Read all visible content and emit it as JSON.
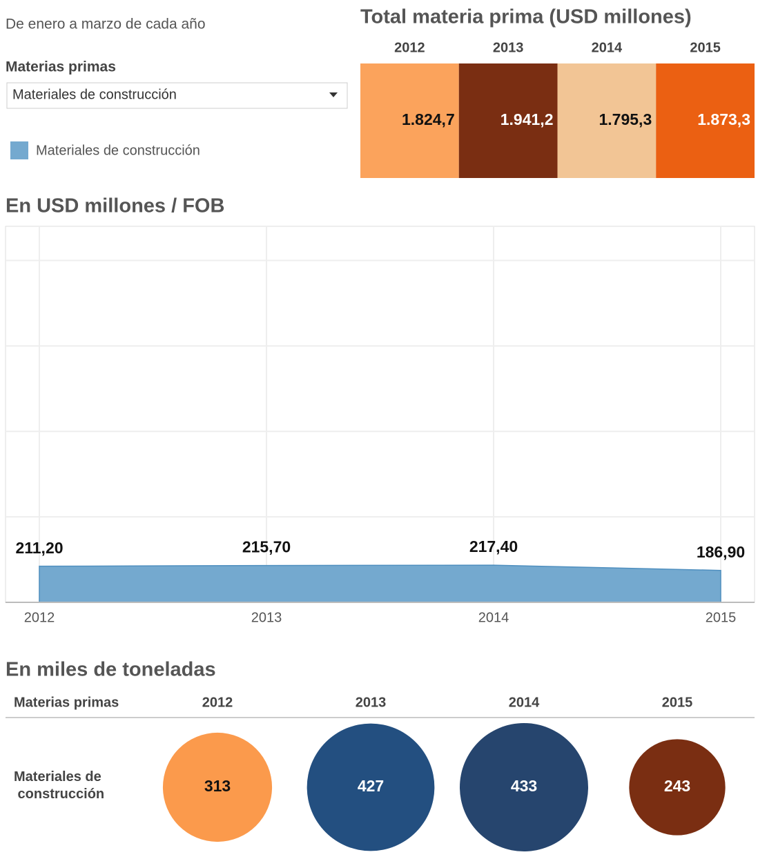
{
  "subtitle": "De enero a marzo de cada año",
  "filter": {
    "label": "Materias primas",
    "value": "Materiales de construcción"
  },
  "chart_data": [
    {
      "type": "heatmap",
      "title": "Total materia prima (USD millones)",
      "categories": [
        "2012",
        "2013",
        "2014",
        "2015"
      ],
      "values": [
        1824.7,
        1941.2,
        1795.3,
        1873.3
      ],
      "value_labels": [
        "1.824,7",
        "1.941,2",
        "1.795,3",
        "1.873,3"
      ],
      "colors": [
        "#fba35c",
        "#7a2e12",
        "#f2c595",
        "#eb6012"
      ]
    },
    {
      "type": "area",
      "title": "En USD millones / FOB",
      "categories": [
        "2012",
        "2013",
        "2014",
        "2015"
      ],
      "series": [
        {
          "name": "Materiales de construcción",
          "color": "#74a9cf",
          "values": [
            211.2,
            215.7,
            217.4,
            186.9
          ],
          "value_labels": [
            "211,20",
            "215,70",
            "217,40",
            "186,90"
          ]
        }
      ],
      "ylim": [
        0,
        2200
      ],
      "yticks": [
        0,
        500,
        1000,
        1500,
        2000
      ],
      "grid": true
    },
    {
      "type": "bubble",
      "title": "En miles de toneladas",
      "row_header": "Materias primas",
      "row_label": "Materiales de construcción",
      "categories": [
        "2012",
        "2013",
        "2014",
        "2015"
      ],
      "values": [
        313,
        427,
        433,
        243
      ],
      "colors": [
        "#fb9a4c",
        "#234f80",
        "#26456e",
        "#7a2e12"
      ]
    }
  ]
}
